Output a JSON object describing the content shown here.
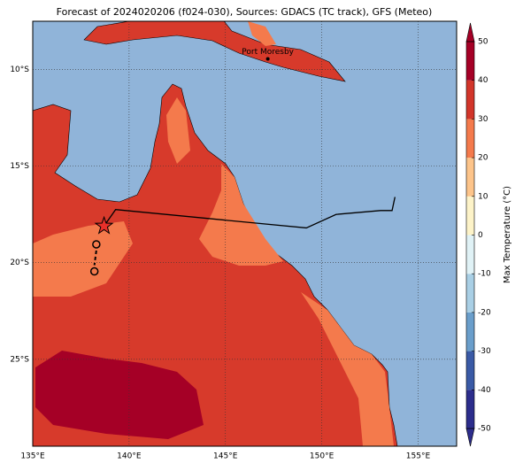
{
  "title": "Forecast of 2024020206 (f024-030), Sources: GDACS (TC track), GFS (Meteo)",
  "map": {
    "xlim": [
      135,
      157
    ],
    "ylim": [
      -29.5,
      -7.5
    ],
    "lon_ticks": [
      {
        "value": 135,
        "label": "135°E"
      },
      {
        "value": 140,
        "label": "140°E"
      },
      {
        "value": 145,
        "label": "145°E"
      },
      {
        "value": 150,
        "label": "150°E"
      },
      {
        "value": 155,
        "label": "155°E"
      }
    ],
    "lat_ticks": [
      {
        "value": -10,
        "label": "10°S"
      },
      {
        "value": -15,
        "label": "15°S"
      },
      {
        "value": -20,
        "label": "20°S"
      },
      {
        "value": -25,
        "label": "25°S"
      }
    ],
    "places": [
      {
        "name": "Port Moresby",
        "lon": 147.2,
        "lat": -9.45
      }
    ],
    "track": {
      "lon": [
        138.7,
        139.3,
        149.2,
        150.75,
        153.05,
        153.65,
        153.8
      ],
      "lat": [
        -18.1,
        -17.25,
        -18.2,
        -17.5,
        -17.3,
        -17.3,
        -16.6
      ]
    },
    "forecast_points": {
      "lon": [
        138.3,
        138.2
      ],
      "lat": [
        -19.05,
        -20.45
      ]
    }
  },
  "colorbar": {
    "label": "Max Temperature (°C)",
    "ticks": [
      -50,
      -40,
      -30,
      -20,
      -10,
      0,
      10,
      20,
      30,
      40,
      50
    ],
    "colors": [
      "#2c2d8c",
      "#3a5aa6",
      "#6a9ecb",
      "#a9cfe5",
      "#e0f2f6",
      "#fdf3c8",
      "#fdc48a",
      "#f47a4c",
      "#d2352a",
      "#a50026"
    ]
  }
}
